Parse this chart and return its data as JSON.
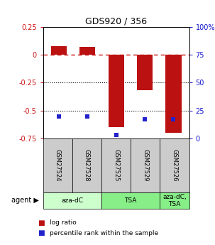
{
  "title": "GDS920 / 356",
  "samples": [
    "GSM27524",
    "GSM27528",
    "GSM27525",
    "GSM27529",
    "GSM27526"
  ],
  "log_ratios": [
    0.08,
    0.07,
    -0.65,
    -0.32,
    -0.7
  ],
  "percentiles": [
    20,
    20,
    3,
    17,
    17
  ],
  "ylim_left": [
    -0.75,
    0.25
  ],
  "ylim_right": [
    0,
    100
  ],
  "yticks_left": [
    -0.75,
    -0.5,
    -0.25,
    0,
    0.25
  ],
  "yticks_right": [
    0,
    25,
    50,
    75,
    100
  ],
  "bar_color": "#bb1111",
  "dot_color": "#2222cc",
  "group_defs": [
    {
      "start": 0,
      "end": 2,
      "label": "aza-dC",
      "color": "#ccffcc"
    },
    {
      "start": 2,
      "end": 4,
      "label": "TSA",
      "color": "#88ee88"
    },
    {
      "start": 4,
      "end": 5,
      "label": "aza-dC,\nTSA",
      "color": "#88ee88"
    }
  ],
  "legend_bar_label": "log ratio",
  "legend_dot_label": "percentile rank within the sample",
  "bar_width": 0.55,
  "background_color": "#ffffff"
}
